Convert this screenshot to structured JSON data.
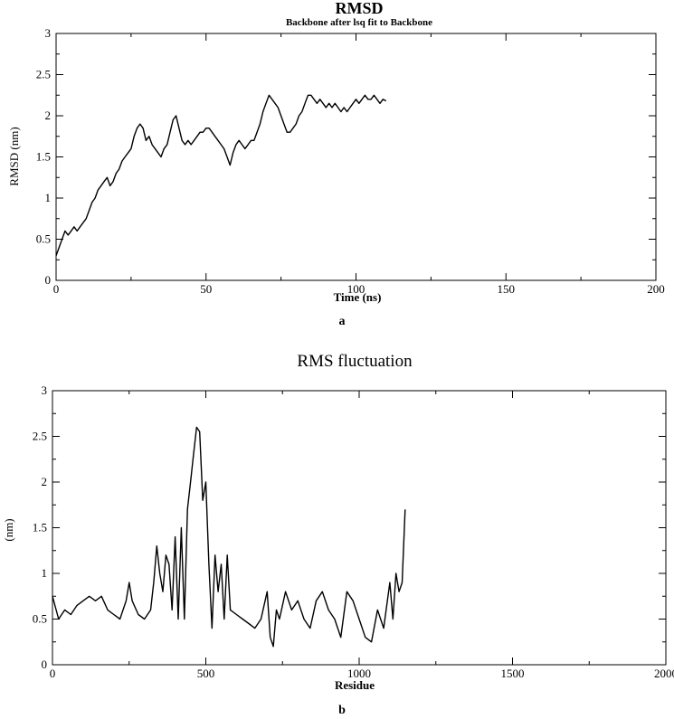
{
  "chart_data": [
    {
      "type": "line",
      "title": "RMSD",
      "subtitle": "Backbone after lsq fit to Backbone",
      "xlabel": "Time (ns)",
      "ylabel": "RMSD (nm)",
      "panel_label": "a",
      "xlim": [
        0,
        200
      ],
      "ylim": [
        0,
        3
      ],
      "xticks": [
        0,
        50,
        100,
        150,
        200
      ],
      "yticks": [
        0,
        0.5,
        1,
        1.5,
        2,
        2.5,
        3
      ],
      "grid": false,
      "line_color": "#000000",
      "series": [
        {
          "x": [
            0,
            1,
            2,
            3,
            4,
            5,
            6,
            7,
            8,
            9,
            10,
            11,
            12,
            13,
            14,
            15,
            16,
            17,
            18,
            19,
            20,
            21,
            22,
            23,
            24,
            25,
            26,
            27,
            28,
            29,
            30,
            31,
            32,
            33,
            34,
            35,
            36,
            37,
            38,
            39,
            40,
            41,
            42,
            43,
            44,
            45,
            46,
            47,
            48,
            49,
            50,
            51,
            52,
            53,
            54,
            55,
            56,
            57,
            58,
            59,
            60,
            61,
            62,
            63,
            64,
            65,
            66,
            67,
            68,
            69,
            70,
            71,
            72,
            73,
            74,
            75,
            76,
            77,
            78,
            79,
            80,
            81,
            82,
            83,
            84,
            85,
            86,
            87,
            88,
            89,
            90,
            91,
            92,
            93,
            94,
            95,
            96,
            97,
            98,
            99,
            100,
            101,
            102,
            103,
            104,
            105,
            106,
            107,
            108,
            109,
            110
          ],
          "y": [
            0.3,
            0.4,
            0.5,
            0.6,
            0.55,
            0.6,
            0.65,
            0.6,
            0.65,
            0.7,
            0.75,
            0.85,
            0.95,
            1.0,
            1.1,
            1.15,
            1.2,
            1.25,
            1.15,
            1.2,
            1.3,
            1.35,
            1.45,
            1.5,
            1.55,
            1.6,
            1.75,
            1.85,
            1.9,
            1.85,
            1.7,
            1.75,
            1.65,
            1.6,
            1.55,
            1.5,
            1.6,
            1.65,
            1.8,
            1.95,
            2.0,
            1.85,
            1.7,
            1.65,
            1.7,
            1.65,
            1.7,
            1.75,
            1.8,
            1.8,
            1.85,
            1.85,
            1.8,
            1.75,
            1.7,
            1.65,
            1.6,
            1.5,
            1.4,
            1.55,
            1.65,
            1.7,
            1.65,
            1.6,
            1.65,
            1.7,
            1.7,
            1.8,
            1.9,
            2.05,
            2.15,
            2.25,
            2.2,
            2.15,
            2.1,
            2.0,
            1.9,
            1.8,
            1.8,
            1.85,
            1.9,
            2.0,
            2.05,
            2.15,
            2.25,
            2.25,
            2.2,
            2.15,
            2.2,
            2.15,
            2.1,
            2.15,
            2.1,
            2.15,
            2.1,
            2.05,
            2.1,
            2.05,
            2.1,
            2.15,
            2.2,
            2.15,
            2.2,
            2.25,
            2.2,
            2.2,
            2.25,
            2.2,
            2.15,
            2.2,
            2.18
          ]
        }
      ]
    },
    {
      "type": "line",
      "title": "RMS fluctuation",
      "xlabel": "Residue",
      "ylabel": "(nm)",
      "panel_label": "b",
      "xlim": [
        0,
        2000
      ],
      "ylim": [
        0,
        3
      ],
      "xticks": [
        0,
        500,
        1000,
        1500,
        2000
      ],
      "yticks": [
        0,
        0.5,
        1,
        1.5,
        2,
        2.5,
        3
      ],
      "grid": false,
      "line_color": "#000000",
      "series": [
        {
          "x": [
            0,
            20,
            40,
            60,
            80,
            100,
            120,
            140,
            160,
            180,
            200,
            220,
            240,
            250,
            260,
            280,
            300,
            320,
            330,
            340,
            350,
            360,
            370,
            380,
            390,
            400,
            410,
            420,
            430,
            440,
            450,
            460,
            470,
            480,
            490,
            500,
            510,
            520,
            530,
            540,
            550,
            560,
            570,
            580,
            600,
            620,
            640,
            660,
            680,
            700,
            710,
            720,
            730,
            740,
            760,
            780,
            800,
            820,
            840,
            860,
            880,
            900,
            920,
            940,
            960,
            980,
            1000,
            1020,
            1040,
            1060,
            1080,
            1100,
            1110,
            1120,
            1130,
            1140,
            1150
          ],
          "y": [
            0.75,
            0.5,
            0.6,
            0.55,
            0.65,
            0.7,
            0.75,
            0.7,
            0.75,
            0.6,
            0.55,
            0.5,
            0.7,
            0.9,
            0.7,
            0.55,
            0.5,
            0.6,
            0.9,
            1.3,
            1.0,
            0.8,
            1.2,
            1.1,
            0.6,
            1.4,
            0.5,
            1.5,
            0.5,
            1.7,
            2.0,
            2.3,
            2.6,
            2.55,
            1.8,
            2.0,
            1.1,
            0.4,
            1.2,
            0.8,
            1.1,
            0.5,
            1.2,
            0.6,
            0.55,
            0.5,
            0.45,
            0.4,
            0.5,
            0.8,
            0.3,
            0.2,
            0.6,
            0.5,
            0.8,
            0.6,
            0.7,
            0.5,
            0.4,
            0.7,
            0.8,
            0.6,
            0.5,
            0.3,
            0.8,
            0.7,
            0.5,
            0.3,
            0.25,
            0.6,
            0.4,
            0.9,
            0.5,
            1.0,
            0.8,
            0.9,
            1.7
          ]
        }
      ]
    }
  ]
}
